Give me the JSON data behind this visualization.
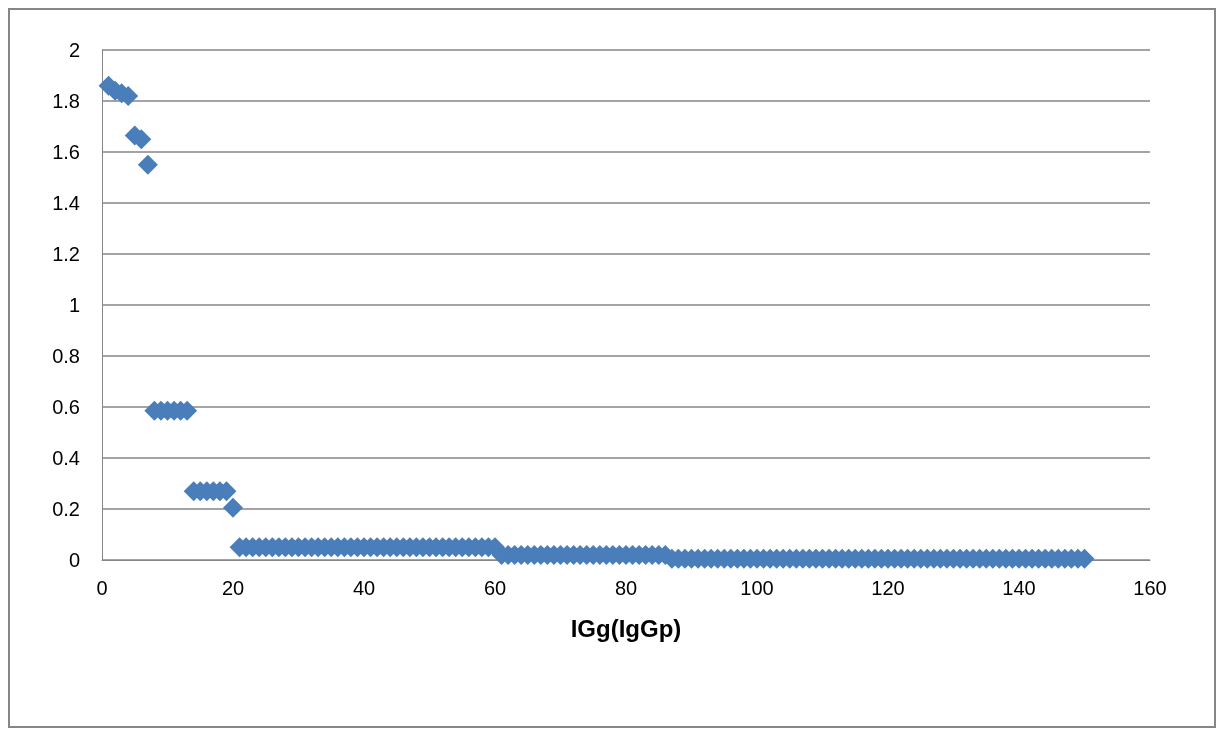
{
  "chart_data": {
    "type": "scatter",
    "xlabel": "IGg(IgGp)",
    "marker": "diamond",
    "grid": "y",
    "xlim": [
      0,
      160
    ],
    "xticks": [
      0,
      20,
      40,
      60,
      80,
      100,
      120,
      140,
      160
    ],
    "ylim": [
      0,
      2
    ],
    "yticks": [
      0,
      0.2,
      0.4,
      0.6,
      0.8,
      1,
      1.2,
      1.4,
      1.6,
      1.8,
      2
    ],
    "series": [
      {
        "color": "#4a7ebb",
        "x": [
          1,
          2,
          3,
          4,
          5,
          6,
          7,
          8,
          9,
          10,
          11,
          12,
          13,
          14,
          15,
          16,
          17,
          18,
          19,
          20,
          21,
          22,
          23,
          24,
          25,
          26,
          27,
          28,
          29,
          30,
          31,
          32,
          33,
          34,
          35,
          36,
          37,
          38,
          39,
          40,
          41,
          42,
          43,
          44,
          45,
          46,
          47,
          48,
          49,
          50,
          51,
          52,
          53,
          54,
          55,
          56,
          57,
          58,
          59,
          60,
          61,
          62,
          63,
          64,
          65,
          66,
          67,
          68,
          69,
          70,
          71,
          72,
          73,
          74,
          75,
          76,
          77,
          78,
          79,
          80,
          81,
          82,
          83,
          84,
          85,
          86,
          87,
          88,
          89,
          90,
          91,
          92,
          93,
          94,
          95,
          96,
          97,
          98,
          99,
          100,
          101,
          102,
          103,
          104,
          105,
          106,
          107,
          108,
          109,
          110,
          111,
          112,
          113,
          114,
          115,
          116,
          117,
          118,
          119,
          120,
          121,
          122,
          123,
          124,
          125,
          126,
          127,
          128,
          129,
          130,
          131,
          132,
          133,
          134,
          135,
          136,
          137,
          138,
          139,
          140,
          141,
          142,
          143,
          144,
          145,
          146,
          147,
          148,
          149,
          150
        ],
        "values": [
          1.86,
          1.84,
          1.83,
          1.82,
          1.665,
          1.65,
          1.55,
          0.585,
          0.585,
          0.585,
          0.585,
          0.585,
          0.585,
          0.27,
          0.27,
          0.27,
          0.27,
          0.27,
          0.27,
          0.205,
          0.05,
          0.05,
          0.05,
          0.05,
          0.05,
          0.05,
          0.05,
          0.05,
          0.05,
          0.05,
          0.05,
          0.05,
          0.05,
          0.05,
          0.05,
          0.05,
          0.05,
          0.05,
          0.05,
          0.05,
          0.05,
          0.05,
          0.05,
          0.05,
          0.05,
          0.05,
          0.05,
          0.05,
          0.05,
          0.05,
          0.05,
          0.05,
          0.05,
          0.05,
          0.05,
          0.05,
          0.05,
          0.05,
          0.05,
          0.05,
          0.02,
          0.02,
          0.02,
          0.02,
          0.02,
          0.02,
          0.02,
          0.02,
          0.02,
          0.02,
          0.02,
          0.02,
          0.02,
          0.02,
          0.02,
          0.02,
          0.02,
          0.02,
          0.02,
          0.02,
          0.02,
          0.02,
          0.02,
          0.02,
          0.02,
          0.02,
          0.005,
          0.005,
          0.005,
          0.005,
          0.005,
          0.005,
          0.005,
          0.005,
          0.005,
          0.005,
          0.005,
          0.005,
          0.005,
          0.005,
          0.005,
          0.005,
          0.005,
          0.005,
          0.005,
          0.005,
          0.005,
          0.005,
          0.005,
          0.005,
          0.005,
          0.005,
          0.005,
          0.005,
          0.005,
          0.005,
          0.005,
          0.005,
          0.005,
          0.005,
          0.005,
          0.005,
          0.005,
          0.005,
          0.005,
          0.005,
          0.005,
          0.005,
          0.005,
          0.005,
          0.005,
          0.005,
          0.005,
          0.005,
          0.005,
          0.005,
          0.005,
          0.005,
          0.005,
          0.005,
          0.005,
          0.005,
          0.005,
          0.005,
          0.005,
          0.005,
          0.005,
          0.005,
          0.005,
          0.005
        ]
      }
    ]
  }
}
